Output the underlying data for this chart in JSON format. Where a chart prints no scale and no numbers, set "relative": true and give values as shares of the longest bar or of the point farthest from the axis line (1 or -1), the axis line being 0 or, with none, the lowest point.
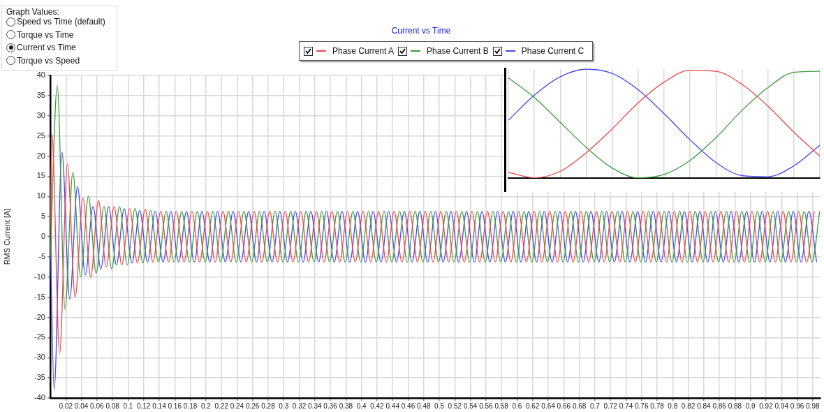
{
  "chart_data": [
    {
      "type": "line",
      "title": "Current vs Time",
      "ylabel": "RMS Current [A]",
      "legend": "top",
      "grid": true,
      "marker": "none",
      "line_style": "solid",
      "annotations": [
        "Graph Values:",
        "Speed vs Time (default)",
        "Torque vs Time",
        "Current vs Time",
        "Torque vs Speed"
      ],
      "xlim": [
        0,
        0.99
      ],
      "xticks": [
        0.02,
        0.04,
        0.06,
        0.08,
        0.1,
        0.12,
        0.14,
        0.16,
        0.18,
        0.2,
        0.22,
        0.24,
        0.26,
        0.28,
        0.3,
        0.32,
        0.34,
        0.36,
        0.38,
        0.4,
        0.42,
        0.44,
        0.46,
        0.48,
        0.5,
        0.52,
        0.54,
        0.56,
        0.58,
        0.6,
        0.62,
        0.64,
        0.66,
        0.68,
        0.7,
        0.72,
        0.74,
        0.76,
        0.78,
        0.8,
        0.82,
        0.84,
        0.86,
        0.88,
        0.9,
        0.92,
        0.94,
        0.96,
        0.98
      ],
      "ylim": [
        -40,
        40
      ],
      "yticks": [
        -40,
        -35,
        -30,
        -25,
        -20,
        -15,
        -10,
        -5,
        0,
        5,
        10,
        15,
        20,
        25,
        30,
        35,
        40
      ],
      "series": [
        {
          "name": "Phase Current A",
          "color": "#f04848",
          "x": [
            0,
            0.002,
            0.012,
            0.022,
            0.032,
            0.042,
            0.052,
            0.062,
            0.072,
            0.082,
            0.092,
            0.102,
            0.112,
            0.122,
            0.132,
            0.142,
            0.152,
            0.162,
            0.172,
            0.182,
            0.192,
            0.202,
            0.212,
            0.222,
            0.232,
            0.242,
            0.252,
            0.262,
            0.272,
            0.282,
            0.292,
            0.302,
            0.312,
            0.322,
            0.332,
            0.342,
            0.352,
            0.362,
            0.372,
            0.382,
            0.392,
            0.402,
            0.412,
            0.422,
            0.432,
            0.442,
            0.452,
            0.462,
            0.472,
            0.482,
            0.492,
            0.502,
            0.512,
            0.522,
            0.532,
            0.542,
            0.552,
            0.562,
            0.572,
            0.582,
            0.592,
            0.602,
            0.612,
            0.622,
            0.632,
            0.642,
            0.652,
            0.662,
            0.672,
            0.682,
            0.692,
            0.702,
            0.712,
            0.722,
            0.732,
            0.742,
            0.752,
            0.762,
            0.772,
            0.782,
            0.792,
            0.802,
            0.812,
            0.822,
            0.832,
            0.842,
            0.852,
            0.862,
            0.872,
            0.882,
            0.892,
            0.902,
            0.912,
            0.922,
            0.932,
            0.942,
            0.952,
            0.962,
            0.972,
            0.982
          ],
          "values": [
            0,
            25.5,
            -29,
            18,
            -15,
            9.5,
            -10,
            9,
            -7.5,
            7.5,
            -7,
            7,
            -6.5,
            6.8,
            -6.3,
            6.3,
            -6.3,
            6.3,
            -6.3,
            6.3,
            -6.3,
            6.3,
            -6.3,
            6.3,
            -6.3,
            6.3,
            -6.3,
            6.3,
            -6.3,
            6.3,
            -6.3,
            6.3,
            -6.3,
            6.3,
            -6.3,
            6.3,
            -6.3,
            6.3,
            -6.3,
            6.3,
            -6.3,
            6.3,
            -6.3,
            6.3,
            -6.3,
            6.3,
            -6.3,
            6.3,
            -6.3,
            6.3,
            -6.3,
            6.3,
            -6.3,
            6.3,
            -6.3,
            6.3,
            -6.3,
            6.3,
            -6.3,
            6.3,
            -6.3,
            6.3,
            -6.3,
            6.3,
            -6.3,
            6.3,
            -6.3,
            6.3,
            -6.3,
            6.3,
            -6.3,
            6.3,
            -6.3,
            6.3,
            -6.3,
            6.3,
            -6.3,
            6.3,
            -6.3,
            6.3,
            -6.3,
            6.3,
            -6.3,
            6.3,
            -6.3,
            6.3,
            -6.3,
            6.3,
            -6.3,
            6.3,
            -6.3,
            6.3,
            -6.3,
            6.3,
            -6.3,
            6.3,
            -6.3,
            6.3,
            -6.3,
            6.3
          ]
        },
        {
          "name": "Phase Current B",
          "color": "#3c9c3c",
          "x": [
            0,
            0.009,
            0.019,
            0.029,
            0.039,
            0.049,
            0.059,
            0.069,
            0.079,
            0.089,
            0.099,
            0.109,
            0.119,
            0.129,
            0.139,
            0.149,
            0.159,
            0.169,
            0.179,
            0.189,
            0.199,
            0.209,
            0.219,
            0.229,
            0.239,
            0.249,
            0.259,
            0.269,
            0.279,
            0.289,
            0.299,
            0.309,
            0.319,
            0.329,
            0.339,
            0.349,
            0.359,
            0.369,
            0.379,
            0.389,
            0.399,
            0.409,
            0.419,
            0.429,
            0.439,
            0.449,
            0.459,
            0.469,
            0.479,
            0.489,
            0.499,
            0.509,
            0.519,
            0.529,
            0.539,
            0.549,
            0.559,
            0.569,
            0.579,
            0.589,
            0.599,
            0.609,
            0.619,
            0.629,
            0.639,
            0.649,
            0.659,
            0.669,
            0.679,
            0.689,
            0.699,
            0.709,
            0.719,
            0.729,
            0.739,
            0.749,
            0.759,
            0.769,
            0.779,
            0.789,
            0.799,
            0.809,
            0.819,
            0.829,
            0.839,
            0.849,
            0.859,
            0.869,
            0.879,
            0.889,
            0.899,
            0.909,
            0.919,
            0.929,
            0.939,
            0.949,
            0.959,
            0.969,
            0.979,
            0.989
          ],
          "values": [
            -5,
            37.5,
            -18,
            16,
            -10,
            10,
            -9,
            7.5,
            -8,
            7.5,
            -7,
            7,
            -6.5,
            6.5,
            -6.3,
            6.3,
            -6.3,
            6.3,
            -6.3,
            6.3,
            -6.3,
            6.3,
            -6.3,
            6.3,
            -6.3,
            6.3,
            -6.3,
            6.3,
            -6.3,
            6.3,
            -6.3,
            6.3,
            -6.3,
            6.3,
            -6.3,
            6.3,
            -6.3,
            6.3,
            -6.3,
            6.3,
            -6.3,
            6.3,
            -6.3,
            6.3,
            -6.3,
            6.3,
            -6.3,
            6.3,
            -6.3,
            6.3,
            -6.3,
            6.3,
            -6.3,
            6.3,
            -6.3,
            6.3,
            -6.3,
            6.3,
            -6.3,
            6.3,
            -6.3,
            6.3,
            -6.3,
            6.3,
            -6.3,
            6.3,
            -6.3,
            6.3,
            -6.3,
            6.3,
            -6.3,
            6.3,
            -6.3,
            6.3,
            -6.3,
            6.3,
            -6.3,
            6.3,
            -6.3,
            6.3,
            -6.3,
            6.3,
            -6.3,
            6.3,
            -6.3,
            6.3,
            -6.3,
            6.3,
            -6.3,
            6.3,
            -6.3,
            6.3,
            -6.3,
            6.3,
            -6.3,
            6.3,
            -6.3,
            6.3,
            -6.3,
            6.3
          ]
        },
        {
          "name": "Phase Current C",
          "color": "#4848f0",
          "x": [
            0,
            0.005,
            0.015,
            0.025,
            0.035,
            0.045,
            0.055,
            0.065,
            0.075,
            0.085,
            0.095,
            0.105,
            0.115,
            0.125,
            0.135,
            0.145,
            0.155,
            0.165,
            0.175,
            0.185,
            0.195,
            0.205,
            0.215,
            0.225,
            0.235,
            0.245,
            0.255,
            0.265,
            0.275,
            0.285,
            0.295,
            0.305,
            0.315,
            0.325,
            0.335,
            0.345,
            0.355,
            0.365,
            0.375,
            0.385,
            0.395,
            0.405,
            0.415,
            0.425,
            0.435,
            0.445,
            0.455,
            0.465,
            0.475,
            0.485,
            0.495,
            0.505,
            0.515,
            0.525,
            0.535,
            0.545,
            0.555,
            0.565,
            0.575,
            0.585,
            0.595,
            0.605,
            0.615,
            0.625,
            0.635,
            0.645,
            0.655,
            0.665,
            0.675,
            0.685,
            0.695,
            0.705,
            0.715,
            0.725,
            0.735,
            0.745,
            0.755,
            0.765,
            0.775,
            0.785,
            0.795,
            0.805,
            0.815,
            0.825,
            0.835,
            0.845,
            0.855,
            0.865,
            0.875,
            0.885,
            0.895,
            0.905,
            0.915,
            0.925,
            0.935,
            0.945,
            0.955,
            0.965,
            0.975,
            0.985
          ],
          "values": [
            0,
            -38,
            21,
            -15.5,
            12.5,
            -9.5,
            7.5,
            -8,
            7.5,
            -7,
            7,
            -6.5,
            6.5,
            -6.3,
            6.3,
            -6.3,
            6.3,
            -6.3,
            6.3,
            -6.3,
            6.3,
            -6.3,
            6.3,
            -6.3,
            6.3,
            -6.3,
            6.3,
            -6.3,
            6.3,
            -6.3,
            6.3,
            -6.3,
            6.3,
            -6.3,
            6.3,
            -6.3,
            6.3,
            -6.3,
            6.3,
            -6.3,
            6.3,
            -6.3,
            6.3,
            -6.3,
            6.3,
            -6.3,
            6.3,
            -6.3,
            6.3,
            -6.3,
            6.3,
            -6.3,
            6.3,
            -6.3,
            6.3,
            -6.3,
            6.3,
            -6.3,
            6.3,
            -6.3,
            6.3,
            -6.3,
            6.3,
            -6.3,
            6.3,
            -6.3,
            6.3,
            -6.3,
            6.3,
            -6.3,
            6.3,
            -6.3,
            6.3,
            -6.3,
            6.3,
            -6.3,
            6.3,
            -6.3,
            6.3,
            -6.3,
            6.3,
            -6.3,
            6.3,
            -6.3,
            6.3,
            -6.3,
            6.3,
            -6.3,
            6.3,
            -6.3,
            6.3,
            -6.3,
            6.3,
            -6.3,
            6.3,
            -6.3,
            6.3,
            -6.3,
            6.3,
            -6.3
          ]
        }
      ]
    },
    {
      "type": "line",
      "relative": true,
      "grid": "x",
      "marker": "none",
      "categories": [
        null,
        null,
        null,
        null,
        null,
        null,
        null,
        null,
        null,
        null,
        null,
        null,
        null
      ],
      "series": [
        {
          "color": "#f04848",
          "values": [
            0.05,
            0,
            0.06,
            0.23,
            0.45,
            0.69,
            0.88,
            0.99,
            0.98,
            0.86,
            0.66,
            0.42,
            0.2
          ]
        },
        {
          "color": "#3c9c3c",
          "values": [
            0.92,
            0.74,
            0.51,
            0.28,
            0.09,
            0,
            0.03,
            0.16,
            0.37,
            0.62,
            0.83,
            0.97,
            0.98
          ]
        },
        {
          "color": "#4848f0",
          "values": [
            0.53,
            0.76,
            0.93,
            1,
            0.96,
            0.81,
            0.59,
            0.35,
            0.14,
            0.02,
            0.01,
            0.11,
            0.3
          ]
        }
      ]
    }
  ]
}
